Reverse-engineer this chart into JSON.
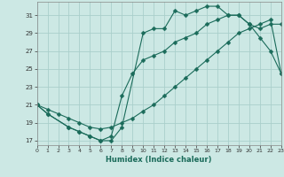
{
  "title": "",
  "xlabel": "Humidex (Indice chaleur)",
  "bg_color": "#cce8e4",
  "grid_color": "#aacfcb",
  "line_color": "#1a6b5a",
  "xlim": [
    0,
    23
  ],
  "ylim": [
    16.5,
    32.5
  ],
  "xticks": [
    0,
    1,
    2,
    3,
    4,
    5,
    6,
    7,
    8,
    9,
    10,
    11,
    12,
    13,
    14,
    15,
    16,
    17,
    18,
    19,
    20,
    21,
    22,
    23
  ],
  "yticks": [
    17,
    19,
    21,
    23,
    25,
    27,
    29,
    31
  ],
  "line1_x": [
    0,
    1,
    3,
    4,
    5,
    6,
    7,
    8,
    10,
    11,
    12,
    13,
    14,
    15,
    16,
    17,
    18,
    19,
    20,
    21,
    22,
    23
  ],
  "line1_y": [
    21,
    20,
    18.5,
    18,
    17.5,
    17,
    17,
    18.5,
    29,
    29.5,
    29.5,
    31.5,
    31,
    31.5,
    32,
    32,
    31,
    31,
    30,
    28.5,
    27,
    24.5
  ],
  "line2_x": [
    0,
    1,
    2,
    3,
    4,
    5,
    6,
    7,
    8,
    9,
    10,
    11,
    12,
    13,
    14,
    15,
    16,
    17,
    18,
    19,
    20,
    21,
    22,
    23
  ],
  "line2_y": [
    21,
    20.5,
    20,
    19.5,
    19,
    18.5,
    18.3,
    18.5,
    19,
    19.5,
    20.3,
    21,
    22,
    23,
    24,
    25,
    26,
    27,
    28,
    29,
    29.5,
    30,
    30.5,
    24.5
  ],
  "line3_x": [
    0,
    1,
    3,
    4,
    5,
    6,
    7,
    8,
    9,
    10,
    11,
    12,
    13,
    14,
    15,
    16,
    17,
    18,
    19,
    20,
    21,
    22,
    23
  ],
  "line3_y": [
    21,
    20,
    18.5,
    18,
    17.5,
    17,
    17.5,
    22,
    24.5,
    26,
    26.5,
    27,
    28,
    28.5,
    29,
    30,
    30.5,
    31,
    31,
    30,
    29.5,
    30,
    30
  ]
}
